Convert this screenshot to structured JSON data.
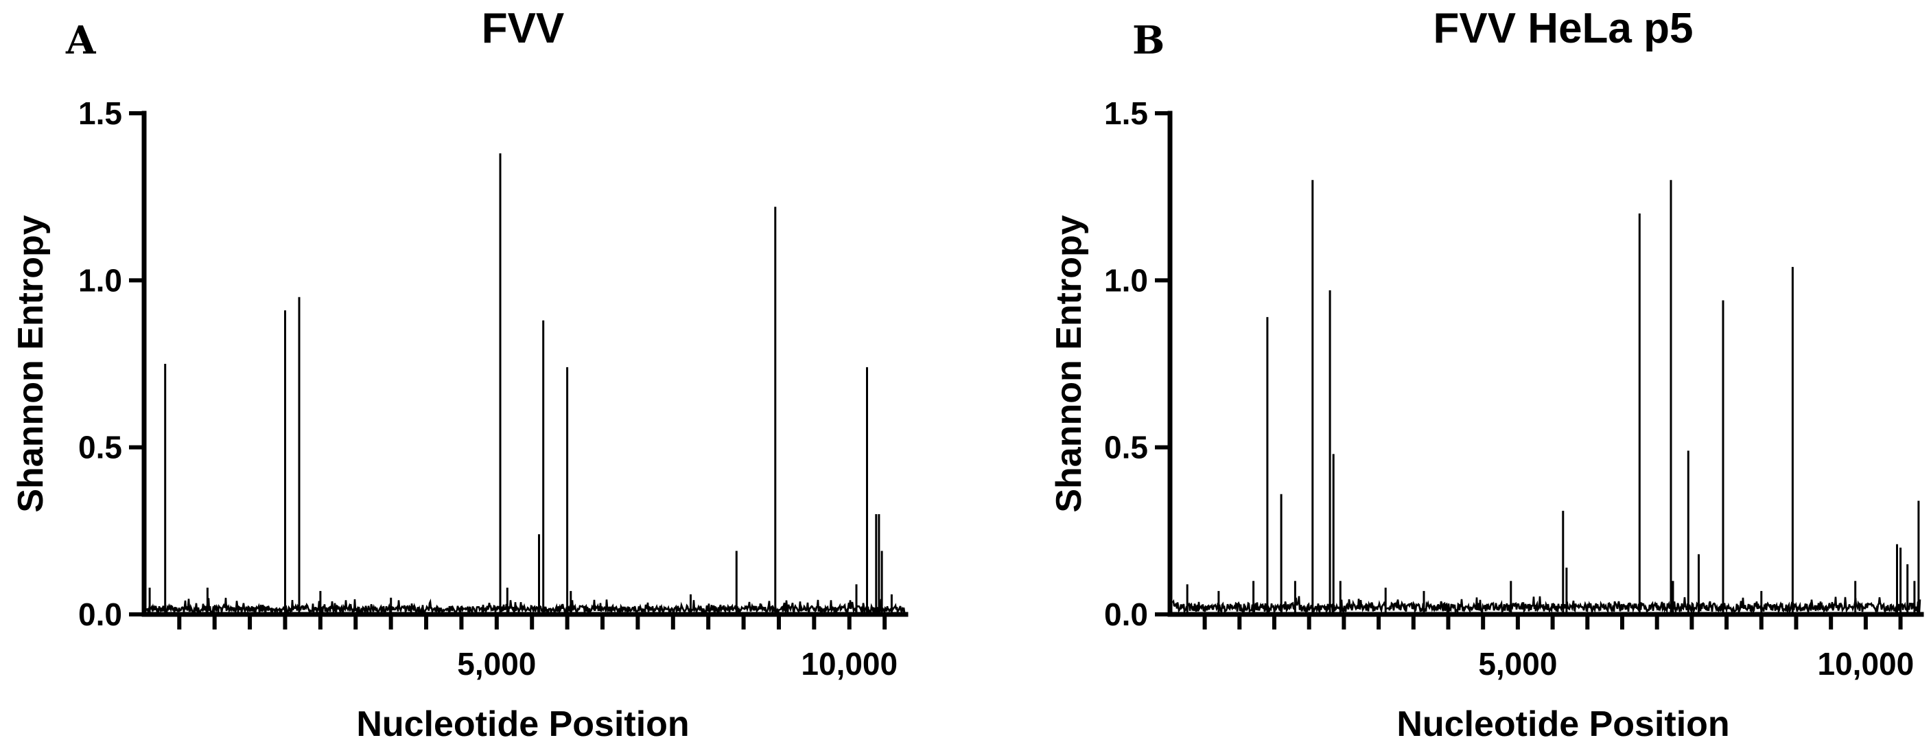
{
  "chart_data": [
    {
      "type": "line",
      "panel_label": "A",
      "title": "FVV",
      "xlabel": "Nucleotide Position",
      "ylabel": "Shannon Entropy",
      "xlim": [
        1,
        10800
      ],
      "ylim": [
        0,
        1.5
      ],
      "x_tick_labels": [
        {
          "value": 5000,
          "label": "5,000"
        },
        {
          "value": 10000,
          "label": "10,000"
        }
      ],
      "x_minor_ticks": [
        500,
        1000,
        1500,
        2000,
        2500,
        3000,
        3500,
        4000,
        4500,
        5000,
        5500,
        6000,
        6500,
        7000,
        7500,
        8000,
        8500,
        9000,
        9500,
        10000,
        10500
      ],
      "y_ticks": [
        {
          "value": 0,
          "label": "0.0"
        },
        {
          "value": 0.5,
          "label": "0.5"
        },
        {
          "value": 1.0,
          "label": "1.0"
        },
        {
          "value": 1.5,
          "label": "1.5"
        }
      ],
      "baseline": 0.015,
      "noise_seed": 7,
      "series": [
        {
          "peaks": [
            {
              "x": 80,
              "y": 0.08
            },
            {
              "x": 300,
              "y": 0.75
            },
            {
              "x": 900,
              "y": 0.08
            },
            {
              "x": 2000,
              "y": 0.91
            },
            {
              "x": 2200,
              "y": 0.95
            },
            {
              "x": 2500,
              "y": 0.07
            },
            {
              "x": 3500,
              "y": 0.05
            },
            {
              "x": 5050,
              "y": 1.38
            },
            {
              "x": 5150,
              "y": 0.08
            },
            {
              "x": 5600,
              "y": 0.24
            },
            {
              "x": 5660,
              "y": 0.88
            },
            {
              "x": 6000,
              "y": 0.74
            },
            {
              "x": 6050,
              "y": 0.07
            },
            {
              "x": 7750,
              "y": 0.06
            },
            {
              "x": 8400,
              "y": 0.19
            },
            {
              "x": 8950,
              "y": 1.22
            },
            {
              "x": 10100,
              "y": 0.09
            },
            {
              "x": 10250,
              "y": 0.74
            },
            {
              "x": 10380,
              "y": 0.3
            },
            {
              "x": 10420,
              "y": 0.3
            },
            {
              "x": 10460,
              "y": 0.19
            },
            {
              "x": 10600,
              "y": 0.06
            }
          ]
        }
      ]
    },
    {
      "type": "line",
      "panel_label": "B",
      "title": "FVV HeLa p5",
      "xlabel": "Nucleotide Position",
      "ylabel": "Shannon Entropy",
      "xlim": [
        1,
        10800
      ],
      "ylim": [
        0,
        1.5
      ],
      "x_tick_labels": [
        {
          "value": 5000,
          "label": "5,000"
        },
        {
          "value": 10000,
          "label": "10,000"
        }
      ],
      "x_minor_ticks": [
        500,
        1000,
        1500,
        2000,
        2500,
        3000,
        3500,
        4000,
        4500,
        5000,
        5500,
        6000,
        6500,
        7000,
        7500,
        8000,
        8500,
        9000,
        9500,
        10000,
        10500
      ],
      "y_ticks": [
        {
          "value": 0,
          "label": "0.0"
        },
        {
          "value": 0.5,
          "label": "0.5"
        },
        {
          "value": 1.0,
          "label": "1.0"
        },
        {
          "value": 1.5,
          "label": "1.5"
        }
      ],
      "baseline": 0.02,
      "noise_seed": 19,
      "series": [
        {
          "peaks": [
            {
              "x": 250,
              "y": 0.09
            },
            {
              "x": 700,
              "y": 0.07
            },
            {
              "x": 1200,
              "y": 0.1
            },
            {
              "x": 1400,
              "y": 0.89
            },
            {
              "x": 1600,
              "y": 0.36
            },
            {
              "x": 1800,
              "y": 0.1
            },
            {
              "x": 2050,
              "y": 1.3
            },
            {
              "x": 2300,
              "y": 0.97
            },
            {
              "x": 2350,
              "y": 0.48
            },
            {
              "x": 2450,
              "y": 0.1
            },
            {
              "x": 3100,
              "y": 0.08
            },
            {
              "x": 3650,
              "y": 0.07
            },
            {
              "x": 4900,
              "y": 0.1
            },
            {
              "x": 5650,
              "y": 0.31
            },
            {
              "x": 5700,
              "y": 0.14
            },
            {
              "x": 6750,
              "y": 1.2
            },
            {
              "x": 7200,
              "y": 1.3
            },
            {
              "x": 7230,
              "y": 0.1
            },
            {
              "x": 7450,
              "y": 0.49
            },
            {
              "x": 7600,
              "y": 0.18
            },
            {
              "x": 7950,
              "y": 0.94
            },
            {
              "x": 8500,
              "y": 0.07
            },
            {
              "x": 8950,
              "y": 1.04
            },
            {
              "x": 9850,
              "y": 0.1
            },
            {
              "x": 10450,
              "y": 0.21
            },
            {
              "x": 10500,
              "y": 0.2
            },
            {
              "x": 10600,
              "y": 0.15
            },
            {
              "x": 10700,
              "y": 0.1
            },
            {
              "x": 10760,
              "y": 0.34
            }
          ]
        }
      ]
    }
  ]
}
